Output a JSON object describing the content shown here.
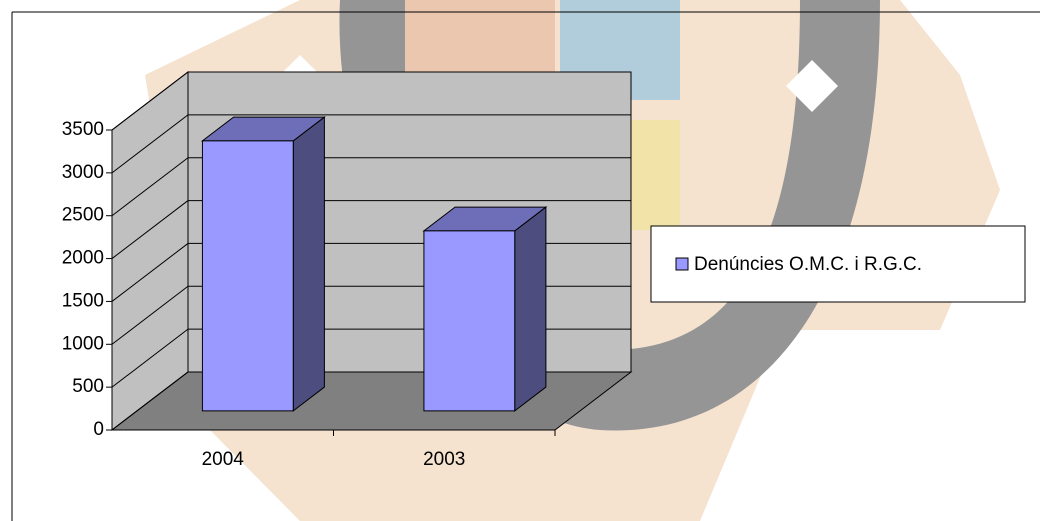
{
  "chart_data": {
    "type": "bar3d",
    "categories": [
      "2004",
      "2003"
    ],
    "series": [
      {
        "name": "Denúncies O.M.C. i R.G.C.",
        "color": "#9999ff",
        "values": [
          3150,
          2100
        ]
      }
    ],
    "ylim": [
      0,
      3500
    ],
    "yticks": [
      0,
      500,
      1000,
      1500,
      2000,
      2500,
      3000,
      3500
    ],
    "grid": true,
    "legend": "right"
  }
}
